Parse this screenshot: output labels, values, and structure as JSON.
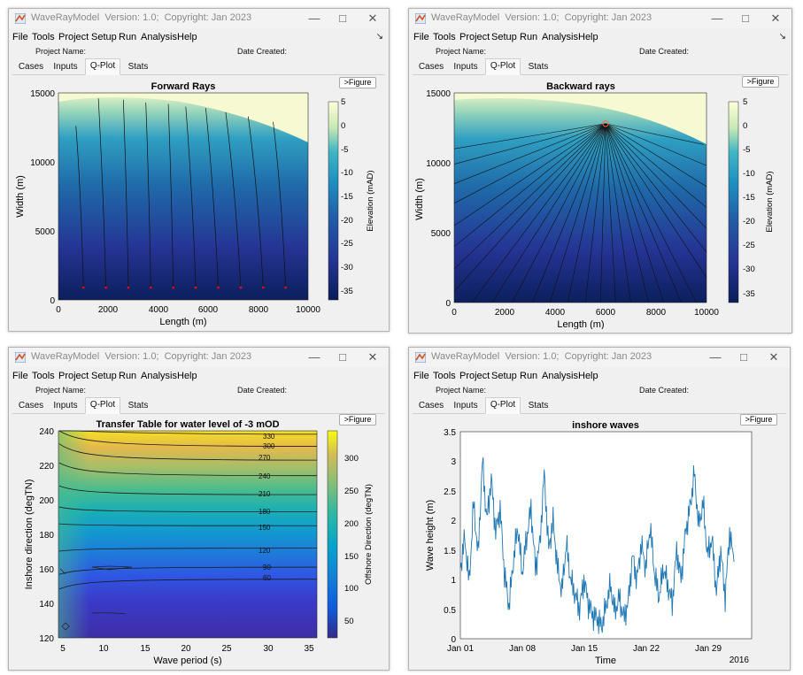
{
  "windows": [
    {
      "title": "WaveRayModel  Version: 1.0;  Copyright: Jan 2023",
      "menus": [
        "File",
        "Tools",
        "Project",
        "Setup",
        "Run",
        "Analysis",
        "Help"
      ],
      "project_name_label": "Project Name:",
      "date_created_label": "Date Created:",
      "tabs": [
        "Cases",
        "Inputs",
        "Q-Plot",
        "Stats"
      ],
      "active_tab": "Q-Plot",
      "figure_button": ">Figure"
    },
    {
      "title": "WaveRayModel  Version: 1.0;  Copyright: Jan 2023",
      "menus": [
        "File",
        "Tools",
        "Project",
        "Setup",
        "Run",
        "Analysis",
        "Help"
      ],
      "project_name_label": "Project Name:",
      "date_created_label": "Date Created:",
      "tabs": [
        "Cases",
        "Inputs",
        "Q-Plot",
        "Stats"
      ],
      "active_tab": "Q-Plot",
      "figure_button": ">Figure"
    },
    {
      "title": "WaveRayModel  Version: 1.0;  Copyright: Jan 2023",
      "menus": [
        "File",
        "Tools",
        "Project",
        "Setup",
        "Run",
        "Analysis",
        "Help"
      ],
      "project_name_label": "Project Name:",
      "date_created_label": "Date Created:",
      "tabs": [
        "Cases",
        "Inputs",
        "Q-Plot",
        "Stats"
      ],
      "active_tab": "Q-Plot",
      "figure_button": ">Figure"
    },
    {
      "title": "WaveRayModel  Version: 1.0;  Copyright: Jan 2023",
      "menus": [
        "File",
        "Tools",
        "Project",
        "Setup",
        "Run",
        "Analysis",
        "Help"
      ],
      "project_name_label": "Project Name:",
      "date_created_label": "Date Created:",
      "tabs": [
        "Cases",
        "Inputs",
        "Q-Plot",
        "Stats"
      ],
      "active_tab": "Q-Plot",
      "figure_button": ">Figure"
    }
  ],
  "colors": {
    "parula_low": "#352a87",
    "parula_high": "#f9fb0e",
    "ygb_low": "#081d58",
    "ygb_high": "#ffffd9",
    "line_series": "#1f77b4",
    "ray_start_marker": "#ff0000"
  },
  "chart_data": [
    {
      "type": "heatmap",
      "title": "Forward Rays",
      "xlabel": "Length (m)",
      "ylabel": "Width (m)",
      "xlim": [
        0,
        10000
      ],
      "ylim": [
        0,
        15000
      ],
      "xticks": [
        "0",
        "2000",
        "4000",
        "6000",
        "8000",
        "10000"
      ],
      "yticks": [
        "0",
        "5000",
        "10000",
        "15000"
      ],
      "colorbar_label": "Elevation (mAD)",
      "colorbar_range": [
        -37,
        5
      ],
      "colorbar_ticks": [
        "5",
        "0",
        "-5",
        "-10",
        "-15",
        "-20",
        "-25",
        "-30",
        "-35"
      ],
      "ray_start_x": [
        1000,
        1900,
        2800,
        3700,
        4600,
        5500,
        6400,
        7300,
        8200,
        9100
      ],
      "ray_end_x": [
        700,
        1600,
        2600,
        3500,
        4400,
        5100,
        5900,
        6700,
        7600,
        8600
      ],
      "ray_end_y": [
        12600,
        14600,
        14500,
        14300,
        14200,
        14000,
        13900,
        13600,
        13300,
        12900
      ]
    },
    {
      "type": "heatmap",
      "title": "Backward rays",
      "xlabel": "Length (m)",
      "ylabel": "Width (m)",
      "xlim": [
        0,
        10000
      ],
      "ylim": [
        0,
        15000
      ],
      "xticks": [
        "0",
        "2000",
        "4000",
        "6000",
        "8000",
        "10000"
      ],
      "yticks": [
        "0",
        "5000",
        "10000",
        "15000"
      ],
      "colorbar_label": "Elevation (mAD)",
      "colorbar_range": [
        -37,
        5
      ],
      "colorbar_ticks": [
        "5",
        "0",
        "-5",
        "-10",
        "-15",
        "-20",
        "-25",
        "-30",
        "-35"
      ],
      "origin": [
        6000,
        12800
      ],
      "ray_end_points": [
        [
          9900,
          11300
        ],
        [
          10000,
          9800
        ],
        [
          10000,
          8300
        ],
        [
          10000,
          6800
        ],
        [
          10000,
          5300
        ],
        [
          10000,
          3600
        ],
        [
          10000,
          1800
        ],
        [
          9600,
          0
        ],
        [
          9000,
          0
        ],
        [
          8300,
          0
        ],
        [
          7700,
          0
        ],
        [
          7000,
          0
        ],
        [
          6400,
          0
        ],
        [
          5800,
          0
        ],
        [
          5200,
          0
        ],
        [
          4500,
          0
        ],
        [
          3800,
          0
        ],
        [
          3100,
          0
        ],
        [
          2300,
          0
        ],
        [
          1500,
          0
        ],
        [
          700,
          0
        ],
        [
          0,
          800
        ],
        [
          0,
          2400
        ],
        [
          0,
          4000
        ],
        [
          0,
          5500
        ],
        [
          0,
          7100
        ],
        [
          0,
          8500
        ],
        [
          0,
          9900
        ],
        [
          0,
          11000
        ]
      ]
    },
    {
      "type": "heatmap",
      "title": "Transfer Table for water level of -3 mOD",
      "xlabel": "Wave period (s)",
      "ylabel": "Inshore direction (degTN)",
      "xlim": [
        3.5,
        36
      ],
      "ylim": [
        120,
        240
      ],
      "xticks": [
        "5",
        "10",
        "15",
        "20",
        "25",
        "30",
        "35"
      ],
      "yticks": [
        "120",
        "140",
        "160",
        "180",
        "200",
        "220",
        "240"
      ],
      "colorbar_label": "Offshore Direction (degTN)",
      "colorbar_range": [
        15,
        350
      ],
      "colorbar_ticks": [
        "300",
        "250",
        "200",
        "150",
        "100",
        "50"
      ],
      "contour_levels": [
        "330",
        "300",
        "270",
        "240",
        "210",
        "180",
        "150",
        "120",
        "90",
        "60"
      ],
      "contour_y_at_x36": [
        238,
        231,
        223,
        214,
        203,
        193,
        185,
        172,
        161,
        154
      ]
    },
    {
      "type": "line",
      "title": "inshore waves",
      "xlabel": "Time",
      "ylabel": "Wave height (m)",
      "ylim": [
        0,
        3.5
      ],
      "xlim": [
        "2016-01-01",
        "2016-02-03"
      ],
      "xticks": [
        "Jan 01",
        "Jan 08",
        "Jan 15",
        "Jan 22",
        "Jan 29"
      ],
      "x_secondary_label": "2016",
      "yticks": [
        "0",
        "0.5",
        "1",
        "1.5",
        "2",
        "2.5",
        "3",
        "3.5"
      ],
      "series": [
        {
          "day": [
            0,
            0.5,
            1,
            1.5,
            2,
            2.5,
            3,
            3.5,
            4,
            4.5,
            5,
            5.5,
            6,
            6.5,
            7,
            7.5,
            8,
            8.5,
            9,
            9.5,
            10,
            10.5,
            11,
            11.5,
            12,
            12.5,
            13,
            13.5,
            14,
            14.5,
            15,
            15.5,
            16,
            16.5,
            17,
            17.5,
            18,
            18.5,
            19,
            19.5,
            20,
            20.5,
            21,
            21.5,
            22,
            22.5,
            23,
            23.5,
            24,
            24.5,
            25,
            25.5,
            26,
            26.5,
            27,
            27.5,
            28,
            28.5,
            29,
            29.5,
            30,
            30.5,
            31
          ],
          "values": [
            1.2,
            1.7,
            0.95,
            2.3,
            1.4,
            3.0,
            2.0,
            2.7,
            1.8,
            2.2,
            1.1,
            0.55,
            1.3,
            1.9,
            1.1,
            1.7,
            2.2,
            1.2,
            1.6,
            2.8,
            1.5,
            2.0,
            1.2,
            0.8,
            1.6,
            1.0,
            0.75,
            0.5,
            1.0,
            0.6,
            0.4,
            0.35,
            0.2,
            0.55,
            0.9,
            0.45,
            0.7,
            0.35,
            0.6,
            1.4,
            1.0,
            1.6,
            1.2,
            1.9,
            1.1,
            0.7,
            1.2,
            0.9,
            0.6,
            1.5,
            1.0,
            1.8,
            2.2,
            2.8,
            1.9,
            2.3,
            1.4,
            1.7,
            0.8,
            1.5,
            0.7,
            1.8,
            1.3
          ]
        }
      ]
    }
  ]
}
